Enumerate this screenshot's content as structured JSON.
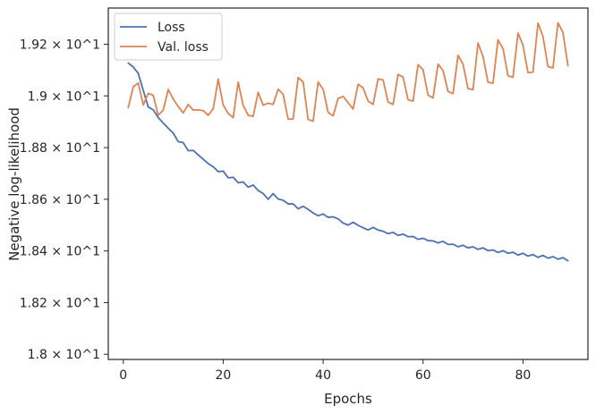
{
  "chart_data": {
    "type": "line",
    "xlabel": "Epochs",
    "ylabel": "Negative log-likelihood",
    "xlim": [
      -3,
      93
    ],
    "ylim": [
      17.98,
      19.34
    ],
    "x_ticks": [
      0,
      20,
      40,
      60,
      80
    ],
    "y_ticks": [
      {
        "value": 18.0,
        "label": "1.8 × 10^1"
      },
      {
        "value": 18.2,
        "label": "1.82 × 10^1"
      },
      {
        "value": 18.4,
        "label": "1.84 × 10^1"
      },
      {
        "value": 18.6,
        "label": "1.86 × 10^1"
      },
      {
        "value": 18.8,
        "label": "1.88 × 10^1"
      },
      {
        "value": 19.0,
        "label": "1.9 × 10^1"
      },
      {
        "value": 19.2,
        "label": "1.92 × 10^1"
      }
    ],
    "grid": false,
    "legend": "top-left",
    "series": [
      {
        "name": "Loss",
        "color": "#4c72b0",
        "x": [
          1,
          2,
          3,
          4,
          5,
          6,
          7,
          8,
          9,
          10,
          11,
          12,
          13,
          14,
          15,
          16,
          17,
          18,
          19,
          20,
          21,
          22,
          23,
          24,
          25,
          26,
          27,
          28,
          29,
          30,
          31,
          32,
          33,
          34,
          35,
          36,
          37,
          38,
          39,
          40,
          41,
          42,
          43,
          44,
          45,
          46,
          47,
          48,
          49,
          50,
          51,
          52,
          53,
          54,
          55,
          56,
          57,
          58,
          59,
          60,
          61,
          62,
          63,
          64,
          65,
          66,
          67,
          68,
          69,
          70,
          71,
          72,
          73,
          74,
          75,
          76,
          77,
          78,
          79,
          80,
          81,
          82,
          83,
          84,
          85,
          86,
          87,
          88,
          89
        ],
        "y": [
          19.127,
          19.112,
          19.087,
          19.021,
          18.957,
          18.946,
          18.916,
          18.895,
          18.875,
          18.856,
          18.823,
          18.819,
          18.788,
          18.789,
          18.772,
          18.755,
          18.738,
          18.726,
          18.707,
          18.709,
          18.683,
          18.685,
          18.664,
          18.667,
          18.647,
          18.655,
          18.634,
          18.622,
          18.6,
          18.622,
          18.601,
          18.596,
          18.582,
          18.582,
          18.563,
          18.573,
          18.561,
          18.547,
          18.536,
          18.543,
          18.53,
          18.532,
          18.524,
          18.508,
          18.5,
          18.511,
          18.499,
          18.49,
          18.481,
          18.491,
          18.481,
          18.476,
          18.467,
          18.472,
          18.46,
          18.465,
          18.455,
          18.456,
          18.445,
          18.449,
          18.44,
          18.439,
          18.431,
          18.437,
          18.425,
          18.426,
          18.416,
          18.422,
          18.412,
          18.416,
          18.406,
          18.412,
          18.401,
          18.404,
          18.394,
          18.401,
          18.391,
          18.395,
          18.384,
          18.391,
          18.38,
          18.386,
          18.375,
          18.383,
          18.372,
          18.378,
          18.368,
          18.374,
          18.362
        ]
      },
      {
        "name": "Val. loss",
        "color": "#dd8452",
        "x": [
          1,
          2,
          3,
          4,
          5,
          6,
          7,
          8,
          9,
          10,
          11,
          12,
          13,
          14,
          15,
          16,
          17,
          18,
          19,
          20,
          21,
          22,
          23,
          24,
          25,
          26,
          27,
          28,
          29,
          30,
          31,
          32,
          33,
          34,
          35,
          36,
          37,
          38,
          39,
          40,
          41,
          42,
          43,
          44,
          45,
          46,
          47,
          48,
          49,
          50,
          51,
          52,
          53,
          54,
          55,
          56,
          57,
          58,
          59,
          60,
          61,
          62,
          63,
          64,
          65,
          66,
          67,
          68,
          69,
          70,
          71,
          72,
          73,
          74,
          75,
          76,
          77,
          78,
          79,
          80,
          81,
          82,
          83,
          84,
          85,
          86,
          87,
          88,
          89
        ],
        "y": [
          18.955,
          19.035,
          19.05,
          18.965,
          19.01,
          19.002,
          18.925,
          18.945,
          19.025,
          18.988,
          18.959,
          18.934,
          18.967,
          18.945,
          18.946,
          18.943,
          18.925,
          18.95,
          19.065,
          18.965,
          18.932,
          18.916,
          19.053,
          18.963,
          18.925,
          18.921,
          19.014,
          18.964,
          18.972,
          18.967,
          19.026,
          19.006,
          18.91,
          18.911,
          19.071,
          19.054,
          18.909,
          18.902,
          19.054,
          19.026,
          18.936,
          18.923,
          18.99,
          18.998,
          18.974,
          18.949,
          19.045,
          19.031,
          18.98,
          18.967,
          19.066,
          19.062,
          18.976,
          18.967,
          19.083,
          19.073,
          18.985,
          18.98,
          19.121,
          19.101,
          19.003,
          18.992,
          19.123,
          19.098,
          19.017,
          19.009,
          19.157,
          19.123,
          19.028,
          19.024,
          19.205,
          19.152,
          19.053,
          19.049,
          19.217,
          19.183,
          19.078,
          19.072,
          19.243,
          19.196,
          19.09,
          19.092,
          19.282,
          19.23,
          19.113,
          19.108,
          19.283,
          19.245,
          19.117
        ]
      }
    ]
  }
}
